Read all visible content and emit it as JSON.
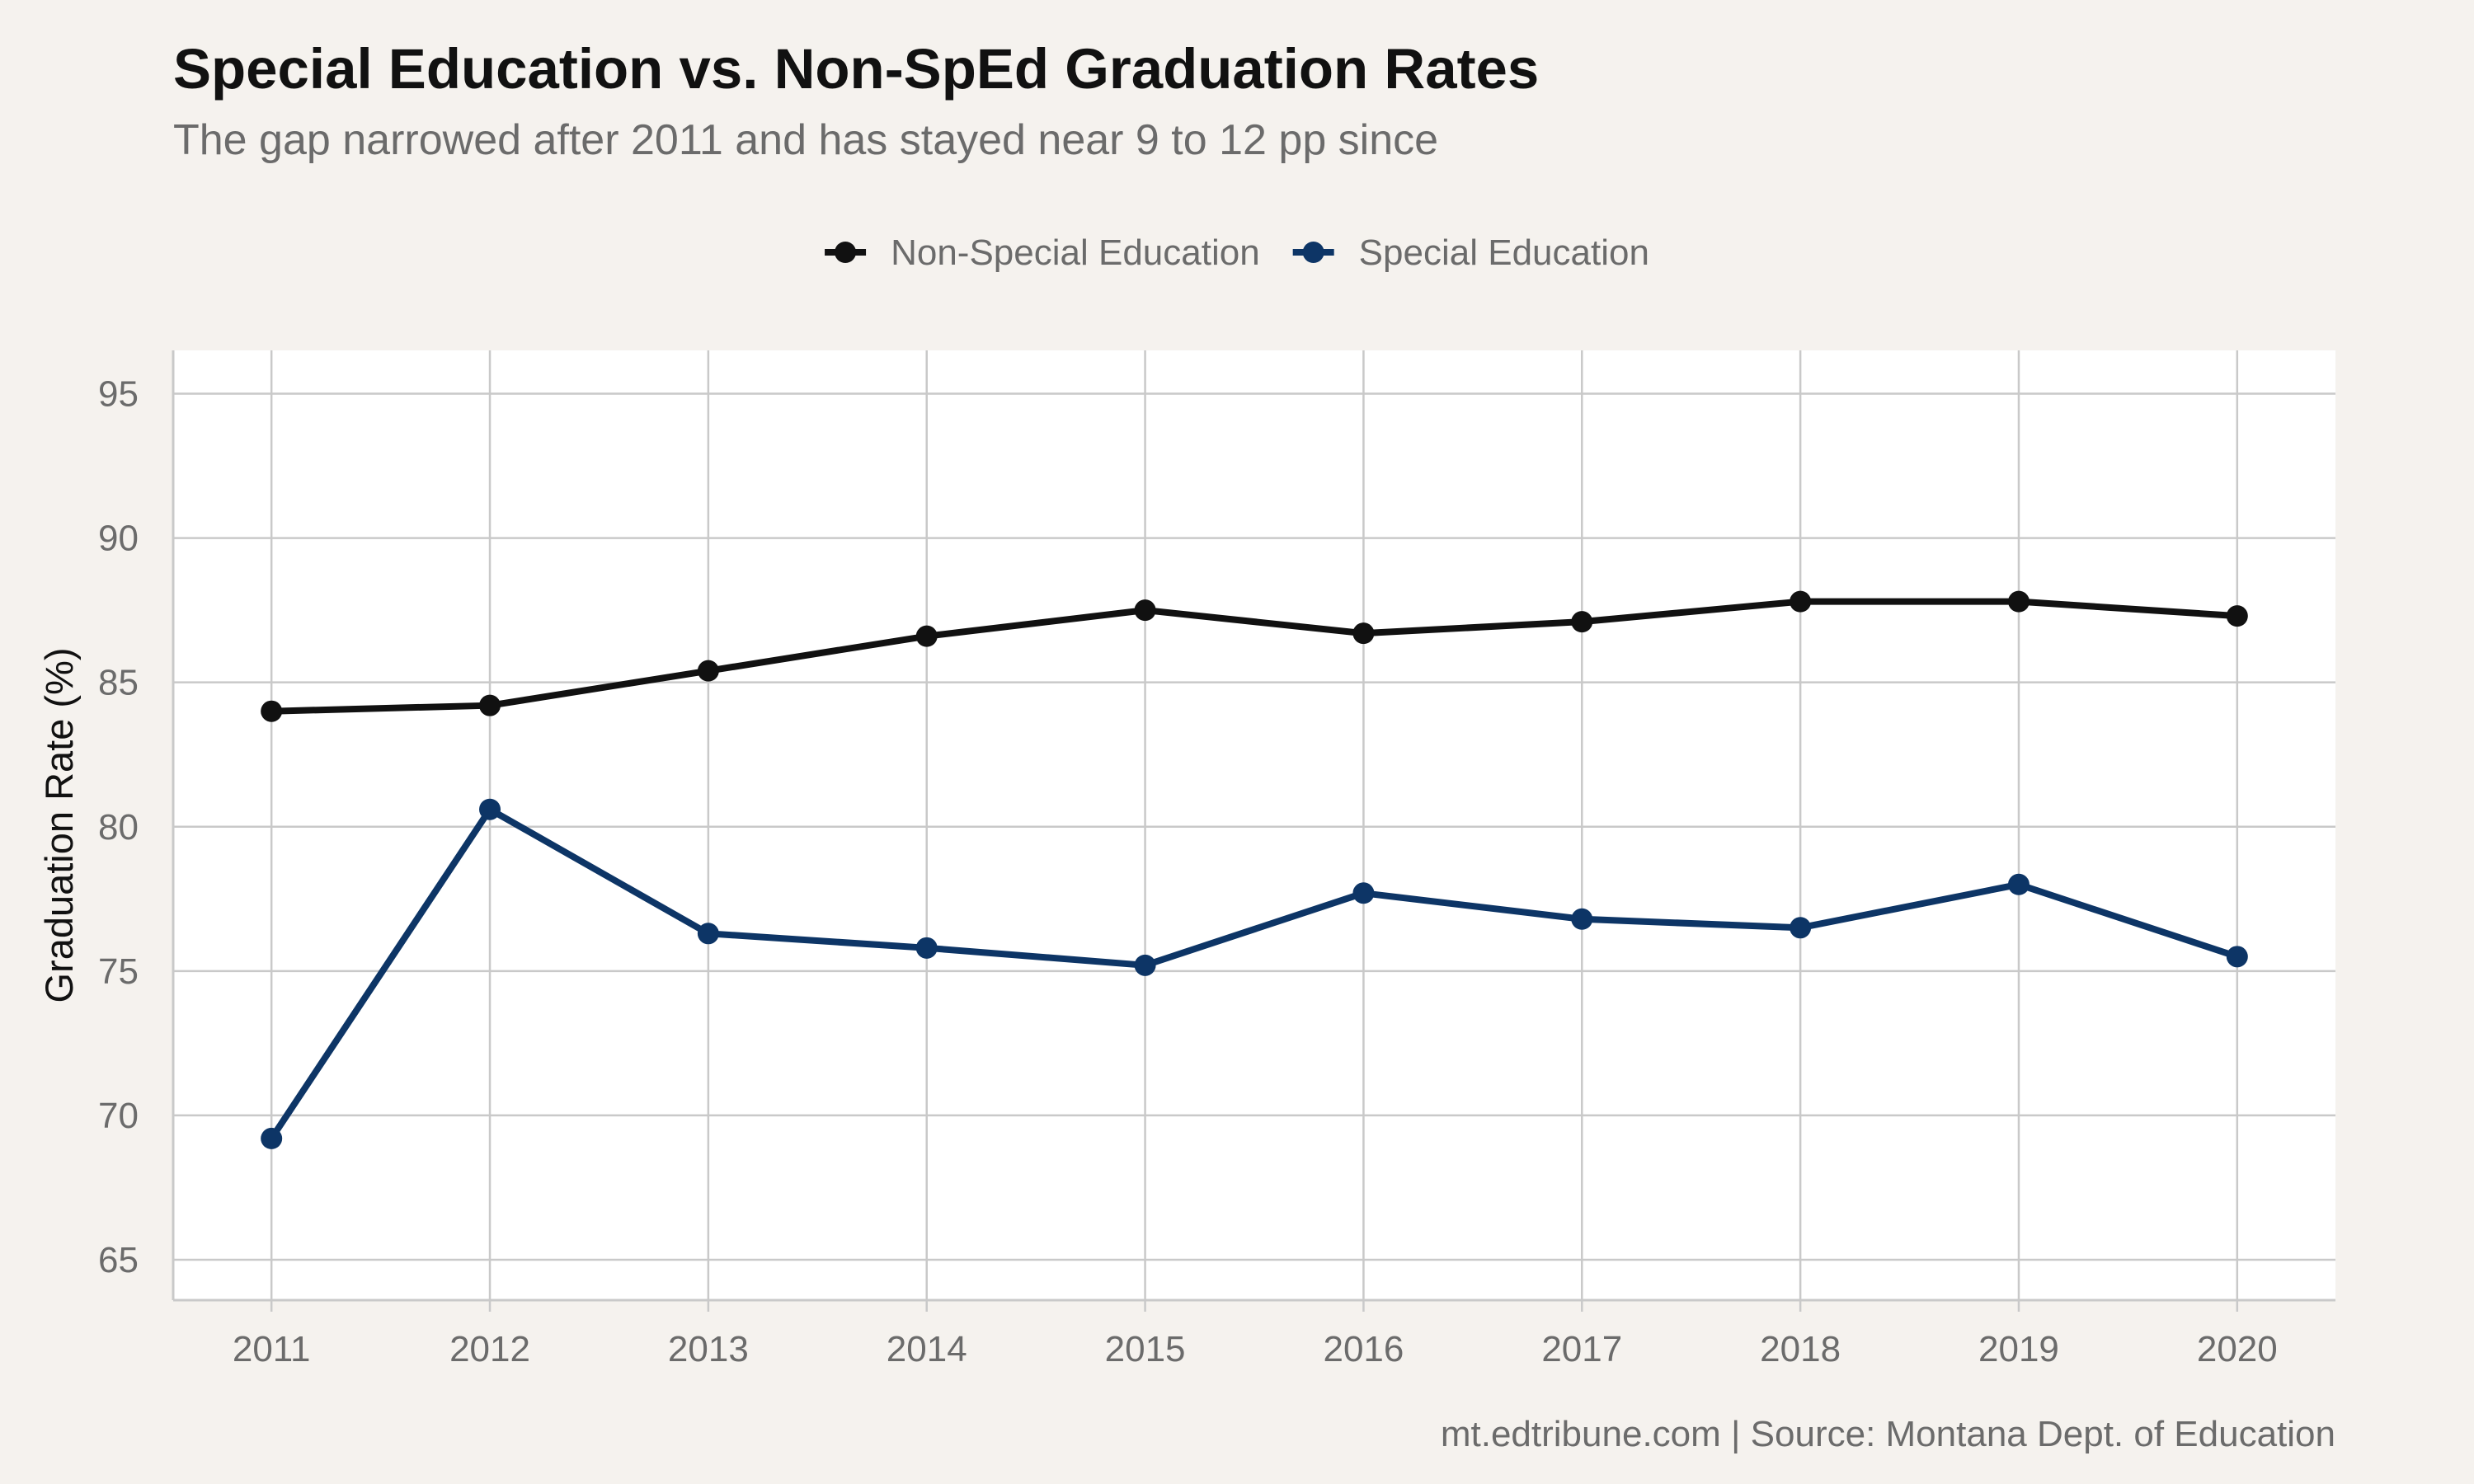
{
  "header": {
    "title": "Special Education vs. Non-SpEd Graduation Rates",
    "subtitle": "The gap narrowed after 2011 and has stayed near 9 to 12 pp since"
  },
  "footer": {
    "caption": "mt.edtribune.com | Source: Montana Dept. of Education"
  },
  "chart_data": {
    "type": "line",
    "title": "Special Education vs. Non-SpEd Graduation Rates",
    "subtitle": "The gap narrowed after 2011 and has stayed near 9 to 12 pp since",
    "xlabel": "",
    "ylabel": "Graduation Rate (%)",
    "x": [
      "2011",
      "2012",
      "2013",
      "2014",
      "2015",
      "2016",
      "2017",
      "2018",
      "2019",
      "2020"
    ],
    "xlim": [
      2010.55,
      2020.45
    ],
    "ylim": [
      63.6,
      96.5
    ],
    "yticks": [
      "65",
      "70",
      "75",
      "80",
      "85",
      "90",
      "95"
    ],
    "grid": true,
    "legend_position": "top",
    "series": [
      {
        "name": "Non-Special Education",
        "color": "#111111",
        "values": [
          84.0,
          84.2,
          85.4,
          86.6,
          87.5,
          86.7,
          87.1,
          87.8,
          87.8,
          87.3
        ]
      },
      {
        "name": "Special Education",
        "color": "#0d3566",
        "values": [
          69.2,
          80.6,
          76.3,
          75.8,
          75.2,
          77.7,
          76.8,
          76.5,
          78.0,
          75.5
        ]
      }
    ],
    "colors": {
      "background": "#f5f2ee",
      "panel": "#ffffff",
      "grid": "#c9c9c9"
    }
  }
}
